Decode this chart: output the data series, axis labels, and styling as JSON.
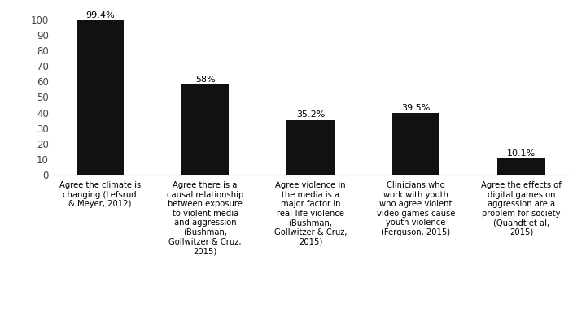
{
  "values": [
    99.4,
    58.0,
    35.2,
    39.5,
    10.1
  ],
  "labels": [
    "Agree the climate is\nchanging (Lefsrud\n& Meyer, 2012)",
    "Agree there is a\ncausal relationship\nbetween exposure\nto violent media\nand aggression\n(Bushman,\nGollwitzer & Cruz,\n2015)",
    "Agree violence in\nthe media is a\nmajor factor in\nreal-life violence\n(Bushman,\nGollwitzer & Cruz,\n2015)",
    "Clinicians who\nwork with youth\nwho agree violent\nvideo games cause\nyouth violence\n(Ferguson, 2015)",
    "Agree the effects of\ndigital games on\naggression are a\nproblem for society\n(Quandt et al,\n2015)"
  ],
  "bar_labels": [
    "99.4%",
    "58%",
    "35.2%",
    "39.5%",
    "10.1%"
  ],
  "bar_color": "#111111",
  "ylim": [
    0,
    100
  ],
  "yticks": [
    0,
    10,
    20,
    30,
    40,
    50,
    60,
    70,
    80,
    90,
    100
  ],
  "background_color": "#ffffff",
  "bar_width": 0.45,
  "label_fontsize": 7.2,
  "value_fontsize": 8.0
}
